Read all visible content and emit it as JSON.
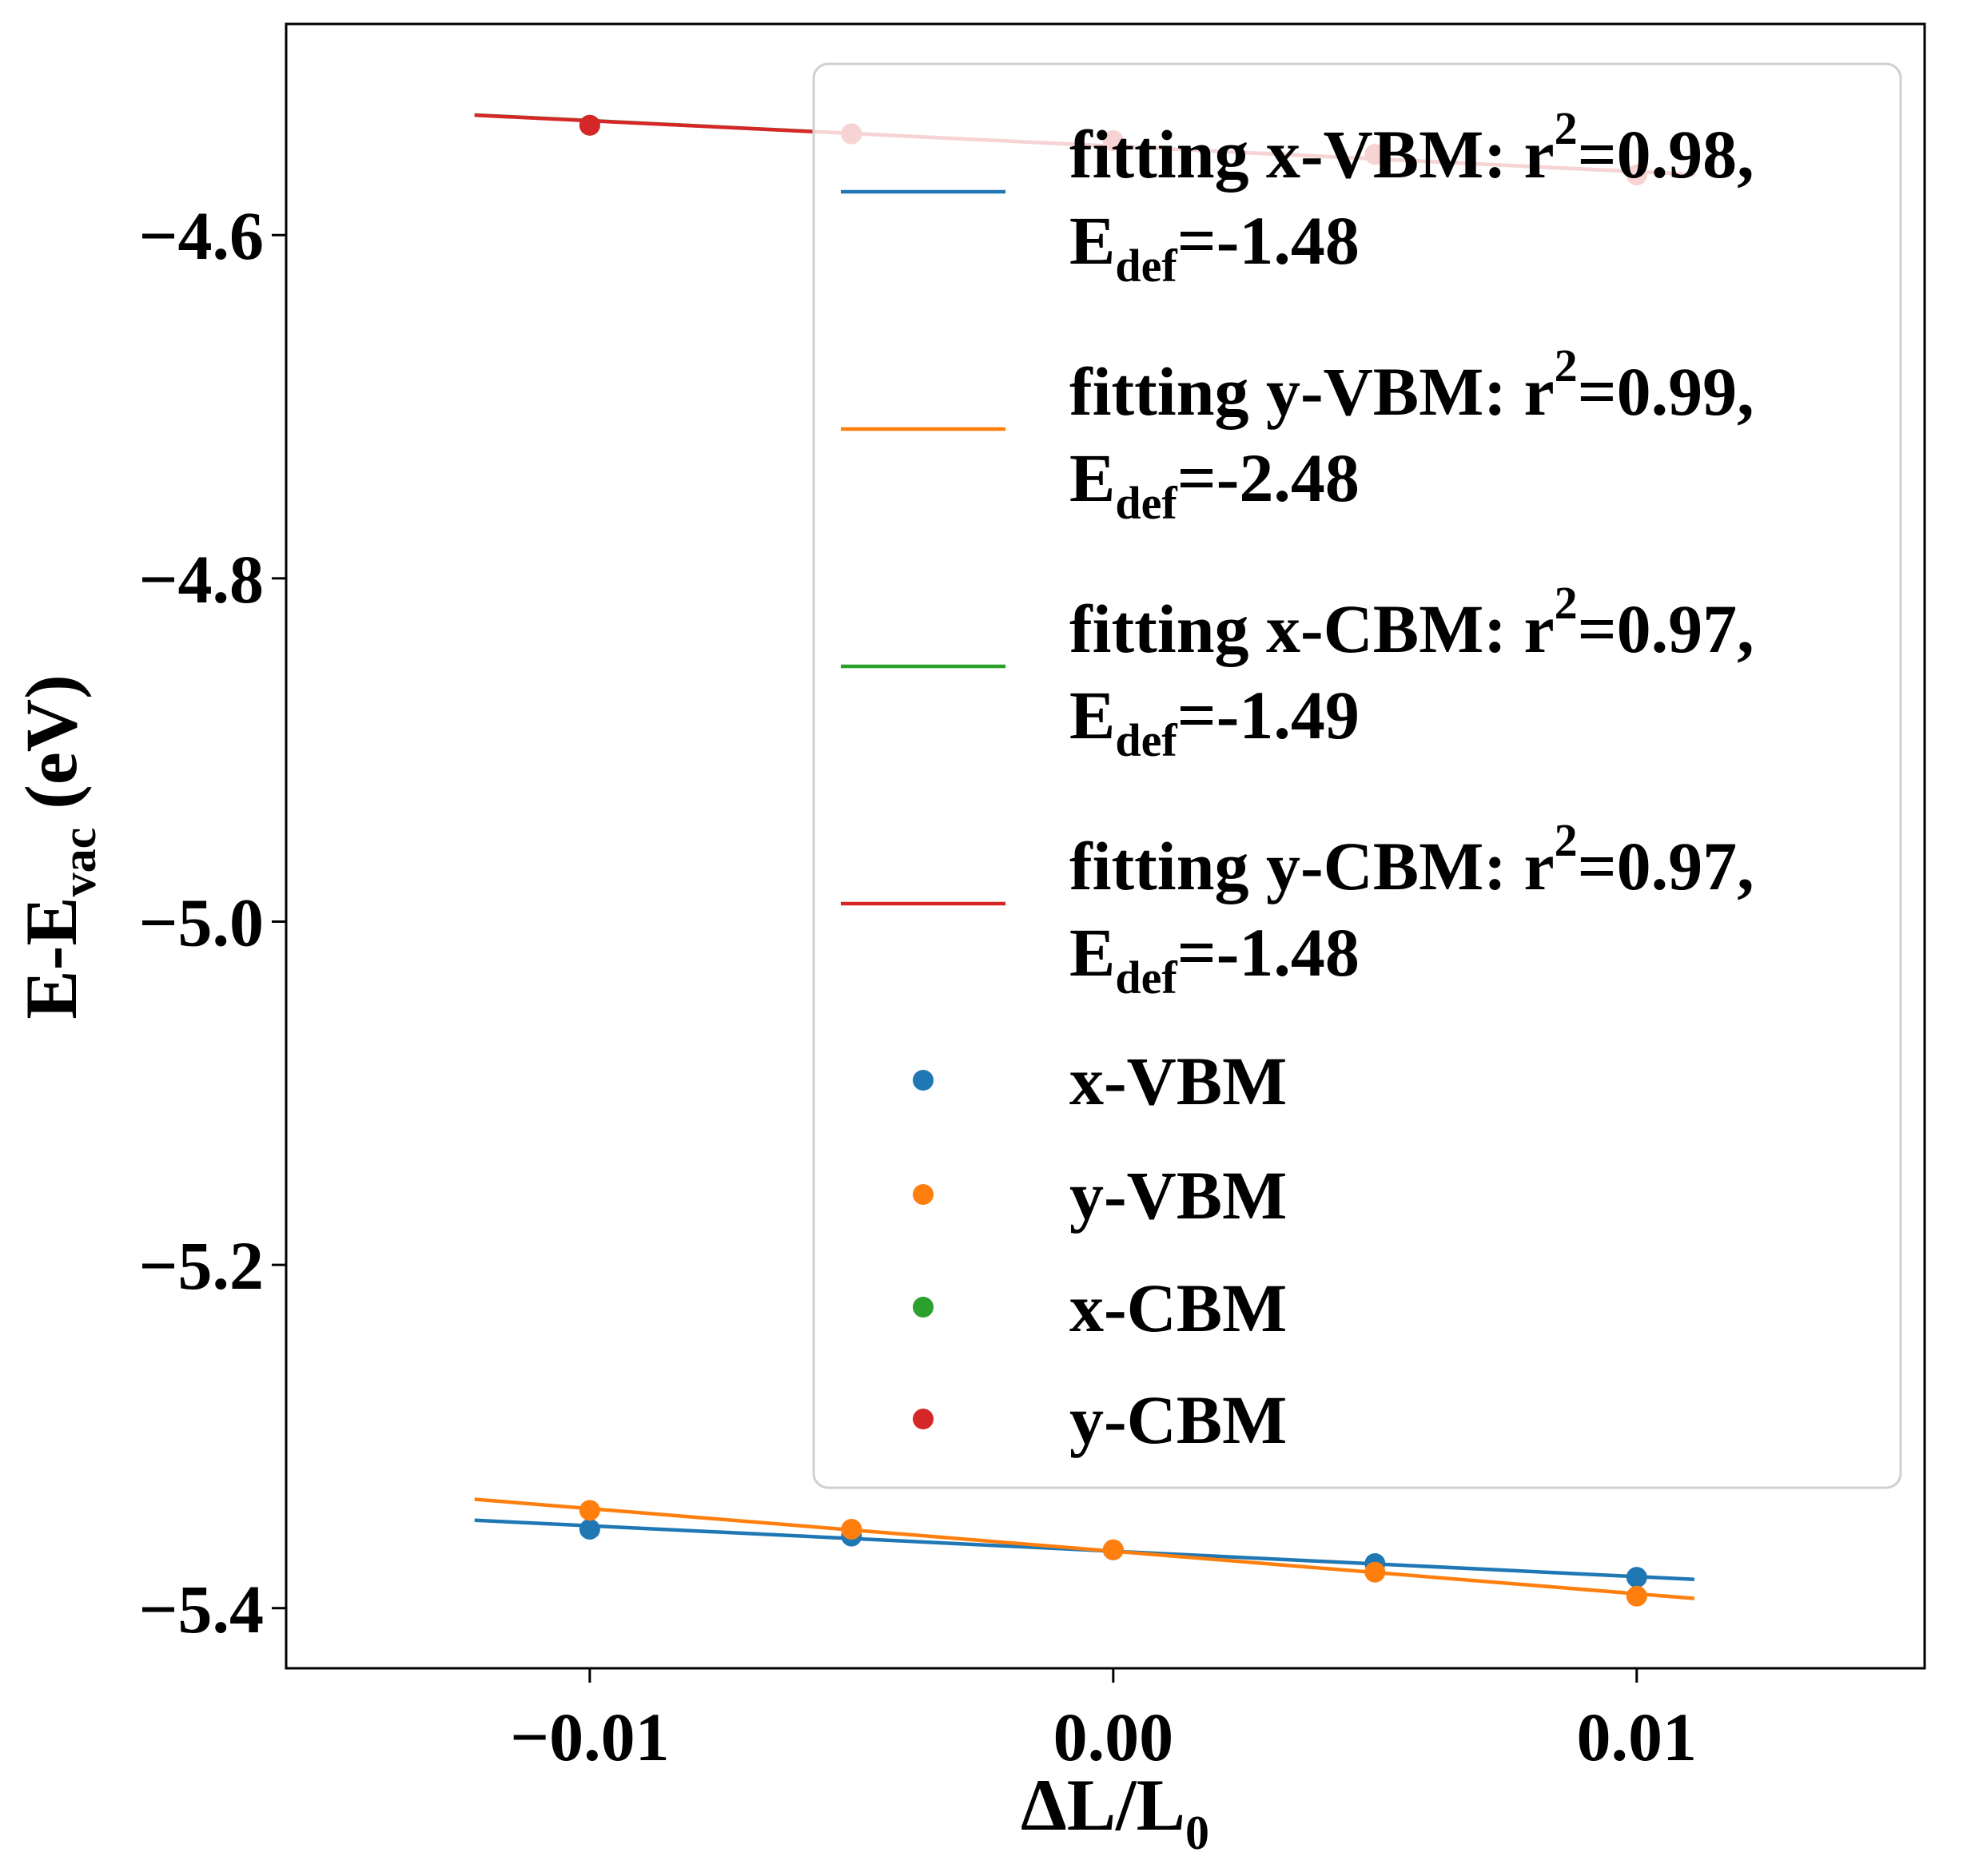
{
  "chart_data": {
    "type": "scatter",
    "xlabel": "ΔL/L",
    "xlabel_sub": "0",
    "ylabel": "E-E",
    "ylabel_sub": "vac",
    "ylabel_suffix": " (eV)",
    "xlim": [
      -0.0158,
      0.0155
    ],
    "ylim": [
      -5.435,
      -4.477
    ],
    "x_ticks": [
      -0.01,
      0.0,
      0.01
    ],
    "x_tick_labels": [
      "−0.01",
      "0.00",
      "0.01"
    ],
    "y_ticks": [
      -4.6,
      -4.8,
      -5.0,
      -5.2,
      -5.4
    ],
    "y_tick_labels": [
      "−4.6",
      "−4.8",
      "−5.0",
      "−5.2",
      "−5.4"
    ],
    "grid": false,
    "legend_position": "upper-right",
    "colors": {
      "x-VBM": "#1f77b4",
      "y-VBM": "#ff7f0e",
      "x-CBM": "#2ca02c",
      "y-CBM": "#d62728"
    },
    "points": {
      "x": [
        -0.01,
        -0.005,
        0.0,
        0.005,
        0.01
      ],
      "series": [
        {
          "name": "x-VBM",
          "values": [
            -5.354,
            -5.358,
            -5.366,
            -5.374,
            -5.382
          ]
        },
        {
          "name": "y-VBM",
          "values": [
            -5.343,
            -5.354,
            -5.366,
            -5.379,
            -5.393
          ]
        },
        {
          "name": "x-CBM",
          "values": [
            -4.536,
            -4.541,
            -4.545,
            -4.553,
            -4.565
          ]
        },
        {
          "name": "y-CBM",
          "values": [
            -4.536,
            -4.541,
            -4.545,
            -4.553,
            -4.565
          ]
        }
      ]
    },
    "fits": {
      "x_range": [
        -0.0122,
        0.0111
      ],
      "series": [
        {
          "name": "x-VBM",
          "slope": -1.48,
          "intercept": -5.3668,
          "r2_label": "fitting x-VBM: r",
          "r2_value": "=0.98,",
          "edef_value": "=-1.48"
        },
        {
          "name": "y-VBM",
          "slope": -2.48,
          "intercept": -5.3668,
          "r2_label": "fitting y-VBM: r",
          "r2_value": "=0.99,",
          "edef_value": "=-2.48"
        },
        {
          "name": "x-CBM",
          "slope": -1.49,
          "intercept": -4.5482,
          "r2_label": "fitting x-CBM: r",
          "r2_value": "=0.97,",
          "edef_value": "=-1.49"
        },
        {
          "name": "y-CBM",
          "slope": -1.48,
          "intercept": -4.5482,
          "r2_label": "fitting y-CBM: r",
          "r2_value": "=0.97,",
          "edef_value": "=-1.48"
        }
      ]
    },
    "legend": {
      "r2_superscript": "2",
      "edef_label": "E",
      "edef_sub": "def",
      "point_labels": [
        "x-VBM",
        "y-VBM",
        "x-CBM",
        "y-CBM"
      ]
    }
  }
}
